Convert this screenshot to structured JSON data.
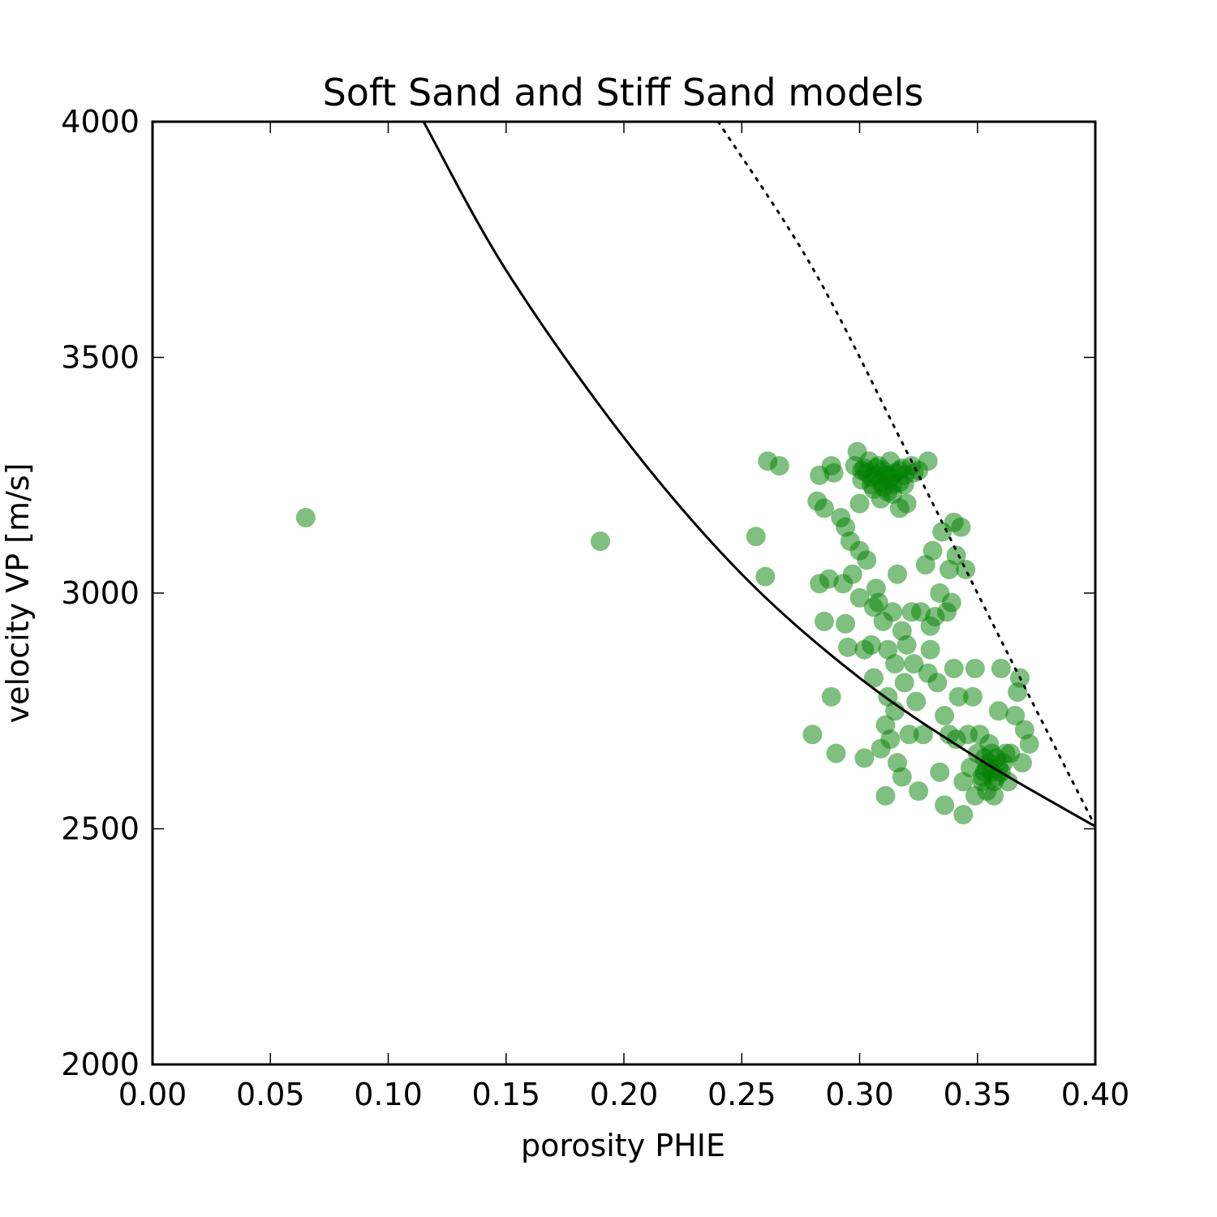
{
  "chart_data": {
    "type": "scatter",
    "title": "Soft Sand and Stiff Sand models",
    "xlabel": "porosity PHIE",
    "ylabel": "velocity VP [m/s]",
    "xlim": [
      0.0,
      0.4
    ],
    "ylim": [
      2000,
      4000
    ],
    "xticks": [
      "0.00",
      "0.05",
      "0.10",
      "0.15",
      "0.20",
      "0.25",
      "0.30",
      "0.35",
      "0.40"
    ],
    "yticks": [
      "2000",
      "2500",
      "3000",
      "3500",
      "4000"
    ],
    "grid": false,
    "colors": {
      "points": "#008000",
      "model_lines": "#000000"
    },
    "series": [
      {
        "style": "scatter",
        "points": [
          [
            0.065,
            3160
          ],
          [
            0.19,
            3110
          ],
          [
            0.256,
            3120
          ],
          [
            0.26,
            3035
          ],
          [
            0.261,
            3280
          ],
          [
            0.266,
            3270
          ],
          [
            0.28,
            2700
          ],
          [
            0.283,
            3020
          ],
          [
            0.282,
            3195
          ],
          [
            0.283,
            3250
          ],
          [
            0.285,
            2940
          ],
          [
            0.285,
            3180
          ],
          [
            0.287,
            3030
          ],
          [
            0.288,
            3270
          ],
          [
            0.288,
            2780
          ],
          [
            0.289,
            3255
          ],
          [
            0.29,
            2660
          ],
          [
            0.292,
            3160
          ],
          [
            0.293,
            3020
          ],
          [
            0.294,
            2935
          ],
          [
            0.294,
            3140
          ],
          [
            0.295,
            2885
          ],
          [
            0.296,
            3110
          ],
          [
            0.297,
            3040
          ],
          [
            0.298,
            3270
          ],
          [
            0.299,
            3300
          ],
          [
            0.3,
            3090
          ],
          [
            0.3,
            3190
          ],
          [
            0.3,
            2990
          ],
          [
            0.301,
            3260
          ],
          [
            0.302,
            2650
          ],
          [
            0.302,
            2880
          ],
          [
            0.303,
            3070
          ],
          [
            0.304,
            3280
          ],
          [
            0.305,
            2890
          ],
          [
            0.305,
            3230
          ],
          [
            0.306,
            2970
          ],
          [
            0.306,
            2820
          ],
          [
            0.307,
            3010
          ],
          [
            0.307,
            3250
          ],
          [
            0.308,
            2980
          ],
          [
            0.309,
            2670
          ],
          [
            0.309,
            3200
          ],
          [
            0.31,
            2940
          ],
          [
            0.31,
            3260
          ],
          [
            0.311,
            2720
          ],
          [
            0.311,
            2570
          ],
          [
            0.312,
            2880
          ],
          [
            0.312,
            2780
          ],
          [
            0.312,
            3240
          ],
          [
            0.313,
            2690
          ],
          [
            0.313,
            3280
          ],
          [
            0.314,
            2960
          ],
          [
            0.314,
            3210
          ],
          [
            0.315,
            2850
          ],
          [
            0.315,
            2750
          ],
          [
            0.316,
            2640
          ],
          [
            0.316,
            3040
          ],
          [
            0.317,
            3180
          ],
          [
            0.317,
            3260
          ],
          [
            0.318,
            2610
          ],
          [
            0.318,
            2920
          ],
          [
            0.319,
            2810
          ],
          [
            0.319,
            3230
          ],
          [
            0.32,
            2890
          ],
          [
            0.32,
            3190
          ],
          [
            0.321,
            2700
          ],
          [
            0.322,
            2960
          ],
          [
            0.322,
            3270
          ],
          [
            0.323,
            2850
          ],
          [
            0.324,
            2770
          ],
          [
            0.325,
            2580
          ],
          [
            0.325,
            3260
          ],
          [
            0.326,
            2960
          ],
          [
            0.327,
            2700
          ],
          [
            0.328,
            3060
          ],
          [
            0.329,
            2830
          ],
          [
            0.329,
            3280
          ],
          [
            0.33,
            2880
          ],
          [
            0.33,
            2930
          ],
          [
            0.331,
            3090
          ],
          [
            0.332,
            2950
          ],
          [
            0.333,
            2810
          ],
          [
            0.334,
            3000
          ],
          [
            0.334,
            2620
          ],
          [
            0.335,
            3130
          ],
          [
            0.336,
            2740
          ],
          [
            0.336,
            2550
          ],
          [
            0.337,
            2960
          ],
          [
            0.338,
            3050
          ],
          [
            0.338,
            2700
          ],
          [
            0.339,
            2980
          ],
          [
            0.34,
            3150
          ],
          [
            0.34,
            2840
          ],
          [
            0.341,
            3080
          ],
          [
            0.341,
            2690
          ],
          [
            0.342,
            2780
          ],
          [
            0.343,
            3140
          ],
          [
            0.344,
            2600
          ],
          [
            0.344,
            2530
          ],
          [
            0.345,
            3050
          ],
          [
            0.346,
            2700
          ],
          [
            0.347,
            2630
          ],
          [
            0.348,
            2780
          ],
          [
            0.349,
            2840
          ],
          [
            0.349,
            2570
          ],
          [
            0.35,
            2660
          ],
          [
            0.351,
            2700
          ],
          [
            0.352,
            2610
          ],
          [
            0.353,
            2650
          ],
          [
            0.354,
            2580
          ],
          [
            0.355,
            2680
          ],
          [
            0.356,
            2620
          ],
          [
            0.357,
            2570
          ],
          [
            0.358,
            2650
          ],
          [
            0.359,
            2750
          ],
          [
            0.36,
            2840
          ],
          [
            0.36,
            2620
          ],
          [
            0.362,
            2660
          ],
          [
            0.363,
            2600
          ],
          [
            0.364,
            2660
          ],
          [
            0.366,
            2740
          ],
          [
            0.367,
            2790
          ],
          [
            0.368,
            2820
          ],
          [
            0.369,
            2640
          ],
          [
            0.37,
            2710
          ],
          [
            0.372,
            2680
          ],
          [
            0.301,
            3240
          ],
          [
            0.303,
            3255
          ],
          [
            0.305,
            3245
          ],
          [
            0.307,
            3265
          ],
          [
            0.309,
            3235
          ],
          [
            0.311,
            3250
          ],
          [
            0.313,
            3245
          ],
          [
            0.315,
            3255
          ],
          [
            0.317,
            3235
          ],
          [
            0.319,
            3250
          ],
          [
            0.306,
            3220
          ],
          [
            0.31,
            3225
          ],
          [
            0.314,
            3230
          ],
          [
            0.302,
            3265
          ],
          [
            0.318,
            3265
          ],
          [
            0.323,
            3255
          ],
          [
            0.308,
            3270
          ],
          [
            0.312,
            3215
          ],
          [
            0.353,
            2620
          ],
          [
            0.355,
            2640
          ],
          [
            0.357,
            2600
          ],
          [
            0.359,
            2630
          ],
          [
            0.352,
            2600
          ],
          [
            0.358,
            2610
          ],
          [
            0.361,
            2640
          ],
          [
            0.356,
            2660
          ],
          [
            0.354,
            2630
          ]
        ]
      },
      {
        "style": "solid-line",
        "points": [
          [
            0.115,
            4000
          ],
          [
            0.15,
            3685
          ],
          [
            0.2,
            3330
          ],
          [
            0.25,
            3040
          ],
          [
            0.3,
            2820
          ],
          [
            0.35,
            2650
          ],
          [
            0.4,
            2505
          ]
        ]
      },
      {
        "style": "dotted-line",
        "points": [
          [
            0.24,
            4000
          ],
          [
            0.28,
            3690
          ],
          [
            0.32,
            3300
          ],
          [
            0.36,
            2900
          ],
          [
            0.4,
            2505
          ]
        ]
      }
    ]
  }
}
